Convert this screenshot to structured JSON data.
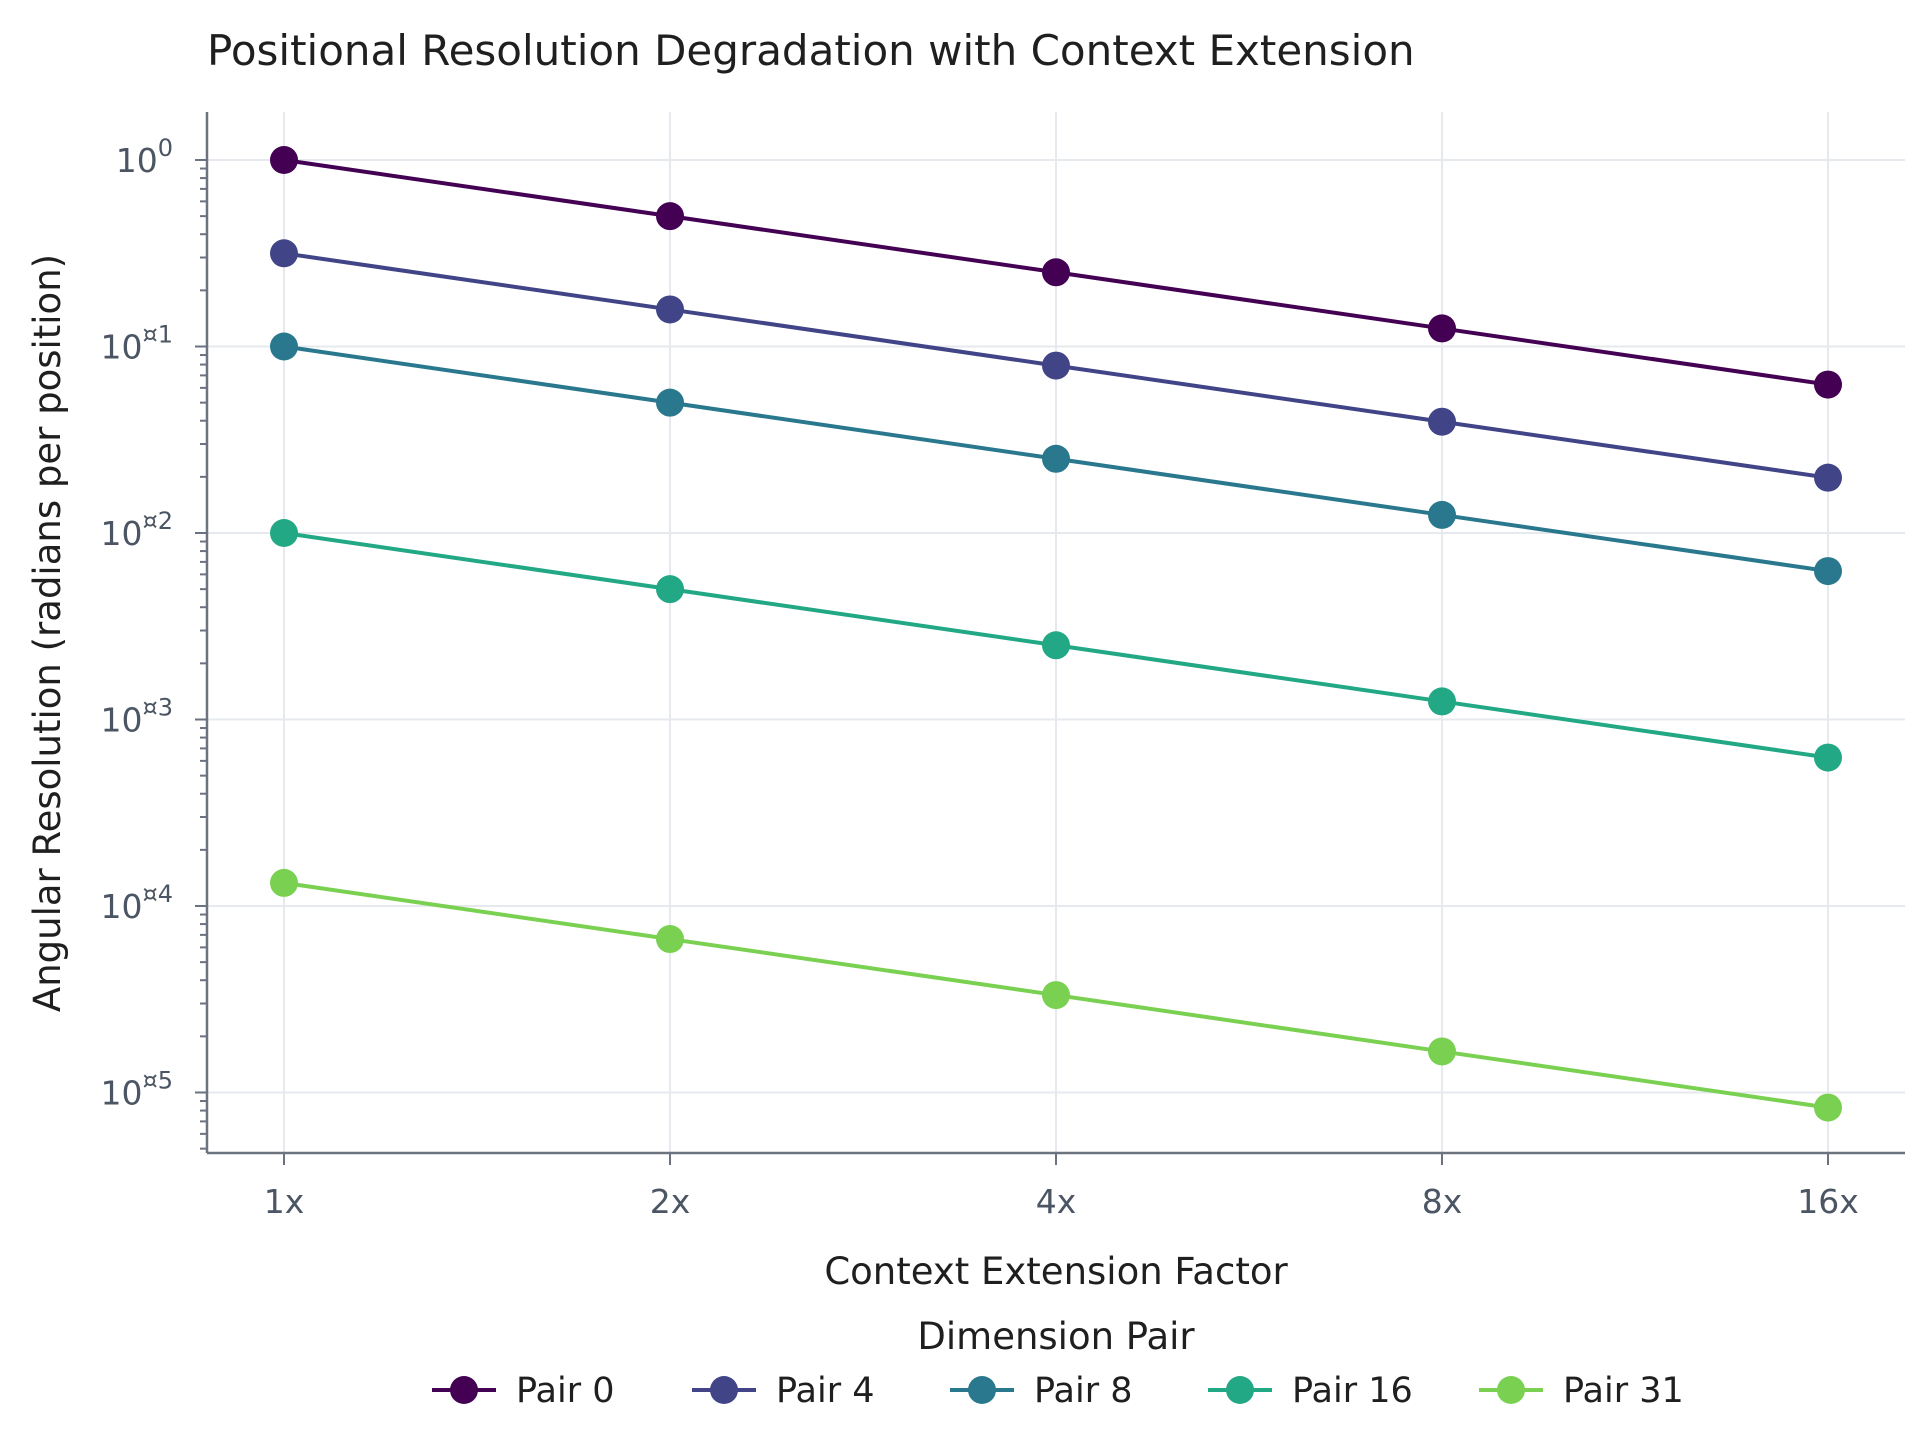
{
  "chart_data": {
    "type": "line",
    "title": "Positional Resolution Degradation with Context Extension",
    "xlabel": "Context Extension Factor",
    "ylabel": "Angular Resolution (radians per position)",
    "categories": [
      "1x",
      "2x",
      "4x",
      "8x",
      "16x"
    ],
    "yscale": "log",
    "ylim": [
      4.5e-06,
      1.3
    ],
    "yticks": [
      {
        "value": 1,
        "mantissa": "10",
        "exponent": "0"
      },
      {
        "value": 0.1,
        "mantissa": "10",
        "exponent": "¤1"
      },
      {
        "value": 0.01,
        "mantissa": "10",
        "exponent": "¤2"
      },
      {
        "value": 0.001,
        "mantissa": "10",
        "exponent": "¤3"
      },
      {
        "value": 0.0001,
        "mantissa": "10",
        "exponent": "¤4"
      },
      {
        "value": 1e-05,
        "mantissa": "10",
        "exponent": "¤5"
      }
    ],
    "grid": true,
    "legend": {
      "title": "Dimension Pair",
      "placement": "bottom"
    },
    "series": [
      {
        "name": "Pair 0",
        "color": "#440154",
        "values": [
          1.0,
          0.5,
          0.25,
          0.125,
          0.0625
        ]
      },
      {
        "name": "Pair 4",
        "color": "#414487",
        "values": [
          0.316,
          0.158,
          0.079,
          0.0395,
          0.0198
        ]
      },
      {
        "name": "Pair 8",
        "color": "#2a788e",
        "values": [
          0.1,
          0.05,
          0.025,
          0.0125,
          0.00625
        ]
      },
      {
        "name": "Pair 16",
        "color": "#22a884",
        "values": [
          0.01,
          0.005,
          0.0025,
          0.00125,
          0.000625
        ]
      },
      {
        "name": "Pair 31",
        "color": "#7ad151",
        "values": [
          0.000133,
          6.65e-05,
          3.33e-05,
          1.66e-05,
          8.3e-06
        ]
      }
    ]
  }
}
